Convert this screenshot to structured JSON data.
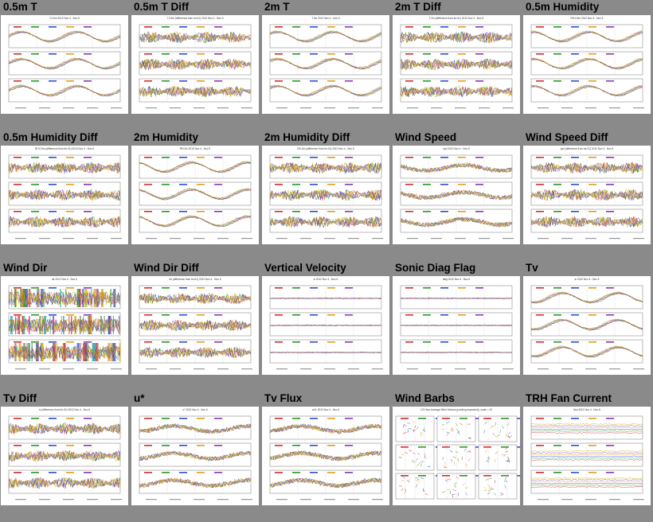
{
  "page": {
    "background": "#8a8a8a"
  },
  "palette": [
    "#d03030",
    "#2a9a2a",
    "#2f4fd0",
    "#e0a020",
    "#8a3ab0",
    "#c8b000",
    "#1aa0a0",
    "#808080"
  ],
  "plots": [
    {
      "title": "0.5m T",
      "caption": "T.0.5m 2012 Nov 4 - Nov 6"
    },
    {
      "title": "0.5m T Diff",
      "caption": "T.0.5m (difference from tnr.01) 2012 Nov 4 - Nov 6"
    },
    {
      "title": "2m T",
      "caption": "T.2m 2012 Nov 4 - Nov 6"
    },
    {
      "title": "2m T Diff",
      "caption": "T.2m (difference from tnr.01) 2012 Nov 4 - Nov 6"
    },
    {
      "title": "0.5m Humidity",
      "caption": "RH.0.5m 2012 Nov 4 - Nov 6"
    },
    {
      "title": "0.5m Humidity Diff",
      "caption": "RH.0.5m (difference from tnr.01) 2012 Nov 4 - Nov 6"
    },
    {
      "title": "2m Humidity",
      "caption": "RH.2m 2012 Nov 4 - Nov 6"
    },
    {
      "title": "2m Humidity Diff",
      "caption": "RH.2m (difference from tnr.01) 2012 Nov 4 - Nov 6"
    },
    {
      "title": "Wind Speed",
      "caption": "spd 2012 Nov 4 - Nov 6"
    },
    {
      "title": "Wind Speed Diff",
      "caption": "spd (difference from tnr.01) 2012 Nov 4 - Nov 6"
    },
    {
      "title": "Wind Dir",
      "caption": "dir 2012 Nov 4 - Nov 6"
    },
    {
      "title": "Wind Dir Diff",
      "caption": "dir (difference from tnr.01) 2012 Nov 4 - Nov 6"
    },
    {
      "title": "Vertical Velocity",
      "caption": "w 2012 Nov 4 - Nov 6"
    },
    {
      "title": "Sonic Diag Flag",
      "caption": "diag 2012 Nov 4 - Nov 6"
    },
    {
      "title": "Tv",
      "caption": "tc 2012 Nov 4 - Nov 6"
    },
    {
      "title": "Tv Diff",
      "caption": "tc (difference from tnr.01) 2012 Nov 4 - Nov 6"
    },
    {
      "title": "u*",
      "caption": "u* 2012 Nov 4 - Nov 6"
    },
    {
      "title": "Tv Flux",
      "caption": "w'tc' 2012 Nov 4 - Nov 6"
    },
    {
      "title": "Wind Barbs",
      "caption": "1/2 Hour Average Wind Vectors (pointing downwind), scale = 20"
    },
    {
      "title": "TRH Fan Current",
      "caption": "Ifan 2012 Nov 4 - Nov 6"
    }
  ]
}
